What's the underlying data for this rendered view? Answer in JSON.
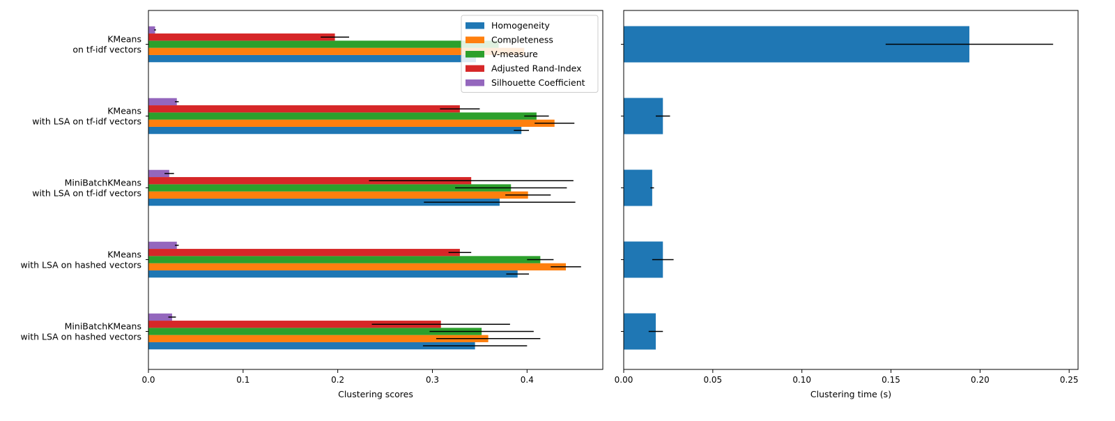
{
  "chart_data": [
    {
      "type": "bar",
      "orientation": "horizontal",
      "categories": [
        [
          "KMeans",
          "on tf-idf vectors"
        ],
        [
          "KMeans",
          "with LSA on tf-idf vectors"
        ],
        [
          "MiniBatchKMeans",
          "with LSA on tf-idf vectors"
        ],
        [
          "KMeans",
          "with LSA on hashed vectors"
        ],
        [
          "MiniBatchKMeans",
          "with LSA on hashed vectors"
        ]
      ],
      "series": [
        {
          "name": "Homogeneity",
          "color": "#1f77b4",
          "values": [
            0.346,
            0.394,
            0.371,
            0.39,
            0.345
          ],
          "errors": [
            0.0,
            0.008,
            0.08,
            0.012,
            0.055
          ]
        },
        {
          "name": "Completeness",
          "color": "#ff7f0e",
          "values": [
            0.397,
            0.429,
            0.401,
            0.441,
            0.359
          ],
          "errors": [
            0.0,
            0.021,
            0.024,
            0.016,
            0.055
          ]
        },
        {
          "name": "V-measure",
          "color": "#2ca02c",
          "values": [
            0.37,
            0.41,
            0.383,
            0.414,
            0.352
          ],
          "errors": [
            0.0,
            0.013,
            0.059,
            0.014,
            0.055
          ]
        },
        {
          "name": "Adjusted Rand-Index",
          "color": "#d62728",
          "values": [
            0.197,
            0.329,
            0.341,
            0.329,
            0.309
          ],
          "errors": [
            0.015,
            0.021,
            0.108,
            0.012,
            0.073
          ]
        },
        {
          "name": "Silhouette Coefficient",
          "color": "#9467bd",
          "values": [
            0.007,
            0.03,
            0.022,
            0.03,
            0.025
          ],
          "errors": [
            0.001,
            0.002,
            0.005,
            0.002,
            0.004
          ]
        }
      ],
      "xlabel": "Clustering scores",
      "xlim": [
        0,
        0.48
      ],
      "xticks": [
        "0.0",
        "0.1",
        "0.2",
        "0.3",
        "0.4"
      ],
      "legend": "upper-right",
      "grid": false
    },
    {
      "type": "bar",
      "orientation": "horizontal",
      "series": [
        {
          "color": "#1f77b4",
          "values": [
            0.194,
            0.022,
            0.016,
            0.022,
            0.018
          ],
          "errors": [
            0.047,
            0.004,
            0.001,
            0.006,
            0.004
          ]
        }
      ],
      "xlabel": "Clustering time (s)",
      "xlim": [
        0,
        0.255
      ],
      "xticks": [
        "0.00",
        "0.05",
        "0.10",
        "0.15",
        "0.20",
        "0.25"
      ],
      "grid": false
    }
  ]
}
